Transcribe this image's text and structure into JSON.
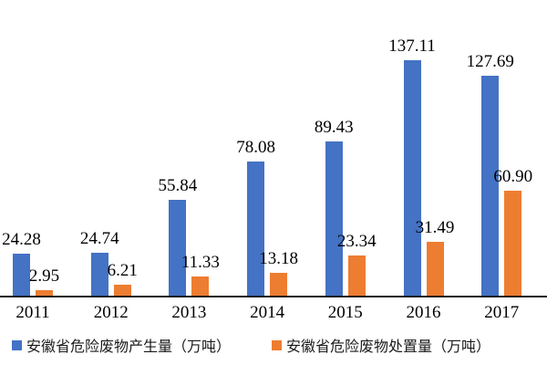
{
  "chart_data": {
    "type": "bar",
    "categories": [
      "2011",
      "2012",
      "2013",
      "2014",
      "2015",
      "2016",
      "2017"
    ],
    "series": [
      {
        "name": "安徽省危险废物产生量（万吨）",
        "key": "production",
        "color": "#4472C4",
        "values": [
          24.28,
          24.74,
          55.84,
          78.08,
          89.43,
          137.11,
          127.69
        ],
        "labels": [
          "24.28",
          "24.74",
          "55.84",
          "78.08",
          "89.43",
          "137.11",
          "127.69"
        ]
      },
      {
        "name": "安徽省危险废物处置量（万吨）",
        "key": "disposal",
        "color": "#ED7D31",
        "values": [
          2.95,
          6.21,
          11.33,
          13.18,
          23.34,
          31.49,
          60.9
        ],
        "labels": [
          "2.95",
          "6.21",
          "11.33",
          "13.18",
          "23.34",
          "31.49",
          "60.90"
        ]
      }
    ],
    "title": "",
    "xlabel": "",
    "ylabel": "",
    "ylim": [
      0,
      145
    ],
    "grid": false,
    "y_axis_visible": false,
    "data_labels": true,
    "legend_position": "bottom",
    "axis_color": "#1a1a1a",
    "text_color": "#000000",
    "background": "#ffffff"
  }
}
